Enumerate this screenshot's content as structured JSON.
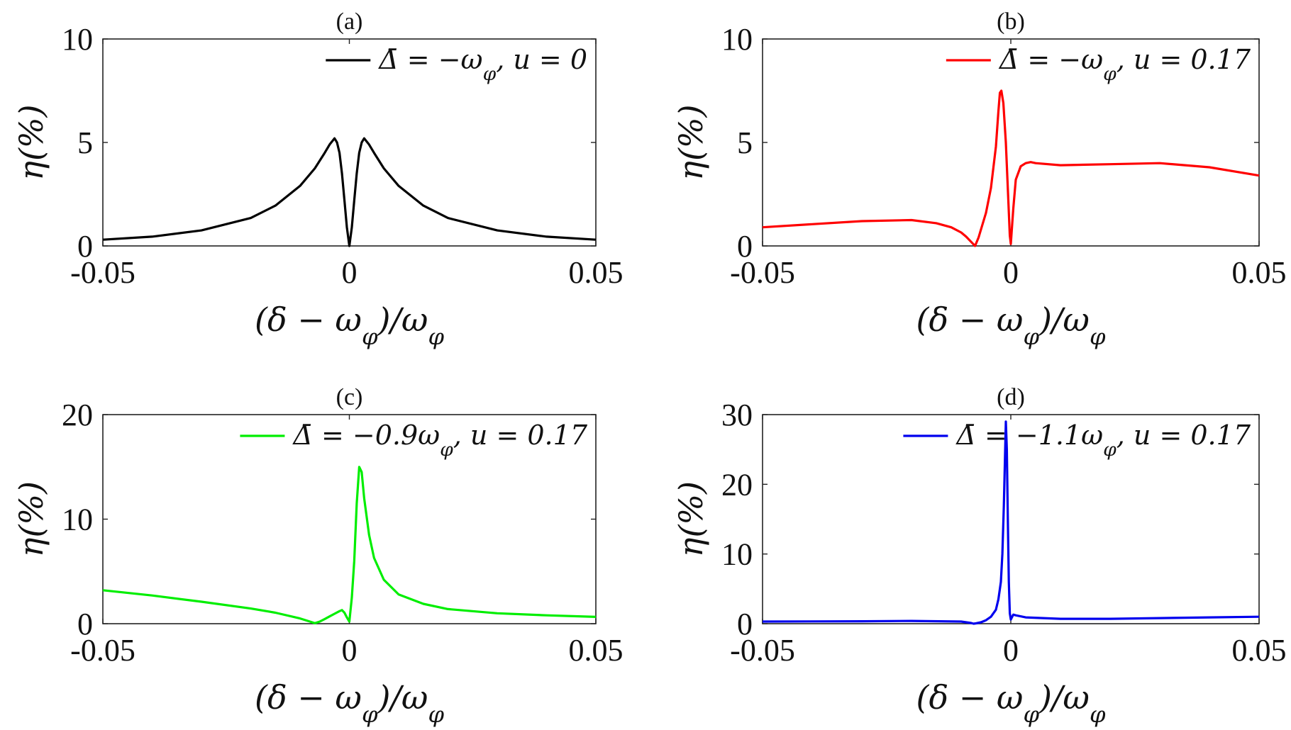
{
  "chart_data": [
    {
      "type": "line",
      "title": "(a)",
      "xlabel": "(δ − ω_φ)/ω_φ",
      "ylabel": "η(%)",
      "xlim": [
        -0.05,
        0.05
      ],
      "ylim": [
        0,
        10
      ],
      "xticks": [
        "-0.05",
        "0",
        "0.05"
      ],
      "yticks": [
        "0",
        "5",
        "10"
      ],
      "legend_position": "top-right",
      "series": [
        {
          "name": "Δ̄ = −ω_φ, u = 0",
          "color": "#000000",
          "x": [
            -0.05,
            -0.04,
            -0.03,
            -0.02,
            -0.015,
            -0.01,
            -0.007,
            -0.005,
            -0.004,
            -0.003,
            -0.0025,
            -0.002,
            -0.0015,
            -0.001,
            -0.0005,
            0,
            0.0005,
            0.001,
            0.0015,
            0.002,
            0.0025,
            0.003,
            0.004,
            0.005,
            0.007,
            0.01,
            0.015,
            0.02,
            0.03,
            0.04,
            0.05
          ],
          "y": [
            0.3,
            0.45,
            0.75,
            1.35,
            1.95,
            2.9,
            3.75,
            4.5,
            4.9,
            5.2,
            5.0,
            4.5,
            3.5,
            2.2,
            0.9,
            0,
            0.9,
            2.2,
            3.5,
            4.5,
            5.0,
            5.2,
            4.9,
            4.5,
            3.75,
            2.9,
            1.95,
            1.35,
            0.75,
            0.45,
            0.3
          ]
        }
      ]
    },
    {
      "type": "line",
      "title": "(b)",
      "xlabel": "(δ − ω_φ)/ω_φ",
      "ylabel": "η(%)",
      "xlim": [
        -0.05,
        0.05
      ],
      "ylim": [
        0,
        10
      ],
      "xticks": [
        "-0.05",
        "0",
        "0.05"
      ],
      "yticks": [
        "0",
        "5",
        "10"
      ],
      "legend_position": "top-right",
      "series": [
        {
          "name": "Δ̄ = −ω_φ, u = 0.17",
          "color": "#ff0000",
          "x": [
            -0.05,
            -0.04,
            -0.03,
            -0.02,
            -0.015,
            -0.012,
            -0.01,
            -0.009,
            -0.008,
            -0.0072,
            -0.0065,
            -0.006,
            -0.005,
            -0.004,
            -0.003,
            -0.0025,
            -0.0022,
            -0.0019,
            -0.0015,
            -0.001,
            -0.0005,
            -0.0002,
            0,
            0.0005,
            0.001,
            0.002,
            0.003,
            0.004,
            0.005,
            0.01,
            0.02,
            0.03,
            0.04,
            0.05
          ],
          "y": [
            0.9,
            1.05,
            1.2,
            1.25,
            1.1,
            0.9,
            0.65,
            0.45,
            0.2,
            0.0,
            0.4,
            0.8,
            1.6,
            2.8,
            4.8,
            6.5,
            7.4,
            7.5,
            6.9,
            5.0,
            2.2,
            0.5,
            0.1,
            1.8,
            3.2,
            3.85,
            4.0,
            4.05,
            4.0,
            3.9,
            3.95,
            4.0,
            3.8,
            3.4
          ]
        }
      ]
    },
    {
      "type": "line",
      "title": "(c)",
      "xlabel": "(δ − ω_φ)/ω_φ",
      "ylabel": "η(%)",
      "xlim": [
        -0.05,
        0.05
      ],
      "ylim": [
        0,
        20
      ],
      "xticks": [
        "-0.05",
        "0",
        "0.05"
      ],
      "yticks": [
        "0",
        "10",
        "20"
      ],
      "legend_position": "top-right",
      "series": [
        {
          "name": "Δ̄ = −0.9ω_φ, u = 0.17",
          "color": "#00ee00",
          "x": [
            -0.05,
            -0.04,
            -0.03,
            -0.02,
            -0.015,
            -0.01,
            -0.008,
            -0.007,
            -0.006,
            -0.005,
            -0.004,
            -0.003,
            -0.002,
            -0.0015,
            -0.001,
            -0.0005,
            0,
            0.0005,
            0.001,
            0.0015,
            0.002,
            0.0025,
            0.003,
            0.004,
            0.005,
            0.007,
            0.01,
            0.015,
            0.02,
            0.03,
            0.04,
            0.05
          ],
          "y": [
            3.2,
            2.7,
            2.1,
            1.45,
            1.05,
            0.5,
            0.2,
            0.05,
            0.2,
            0.45,
            0.7,
            0.95,
            1.2,
            1.3,
            1.05,
            0.6,
            0.2,
            2.5,
            6.0,
            11.5,
            15.0,
            14.5,
            12.0,
            8.5,
            6.3,
            4.2,
            2.8,
            1.9,
            1.4,
            1.0,
            0.8,
            0.65
          ]
        }
      ]
    },
    {
      "type": "line",
      "title": "(d)",
      "xlabel": "(δ − ω_φ)/ω_φ",
      "ylabel": "η(%)",
      "xlim": [
        -0.05,
        0.05
      ],
      "ylim": [
        0,
        30
      ],
      "xticks": [
        "-0.05",
        "0",
        "0.05"
      ],
      "yticks": [
        "0",
        "10",
        "20",
        "30"
      ],
      "legend_position": "top-right",
      "series": [
        {
          "name": "Δ̄ = −1.1ω_φ, u = 0.17",
          "color": "#0000ee",
          "x": [
            -0.05,
            -0.03,
            -0.02,
            -0.01,
            -0.008,
            -0.0075,
            -0.007,
            -0.006,
            -0.005,
            -0.004,
            -0.003,
            -0.0025,
            -0.002,
            -0.0017,
            -0.0014,
            -0.0012,
            -0.001,
            -0.0008,
            -0.0006,
            -0.0004,
            -0.0002,
            0,
            0.0005,
            0.001,
            0.003,
            0.01,
            0.02,
            0.03,
            0.04,
            0.05
          ],
          "y": [
            0.3,
            0.35,
            0.4,
            0.3,
            0.1,
            0.0,
            0.05,
            0.2,
            0.5,
            1.0,
            2.0,
            3.5,
            6.0,
            10.0,
            17.0,
            23.0,
            29.0,
            25.0,
            15.0,
            6.0,
            1.5,
            0.6,
            1.3,
            1.2,
            0.9,
            0.7,
            0.7,
            0.8,
            0.9,
            1.0
          ]
        }
      ]
    }
  ]
}
